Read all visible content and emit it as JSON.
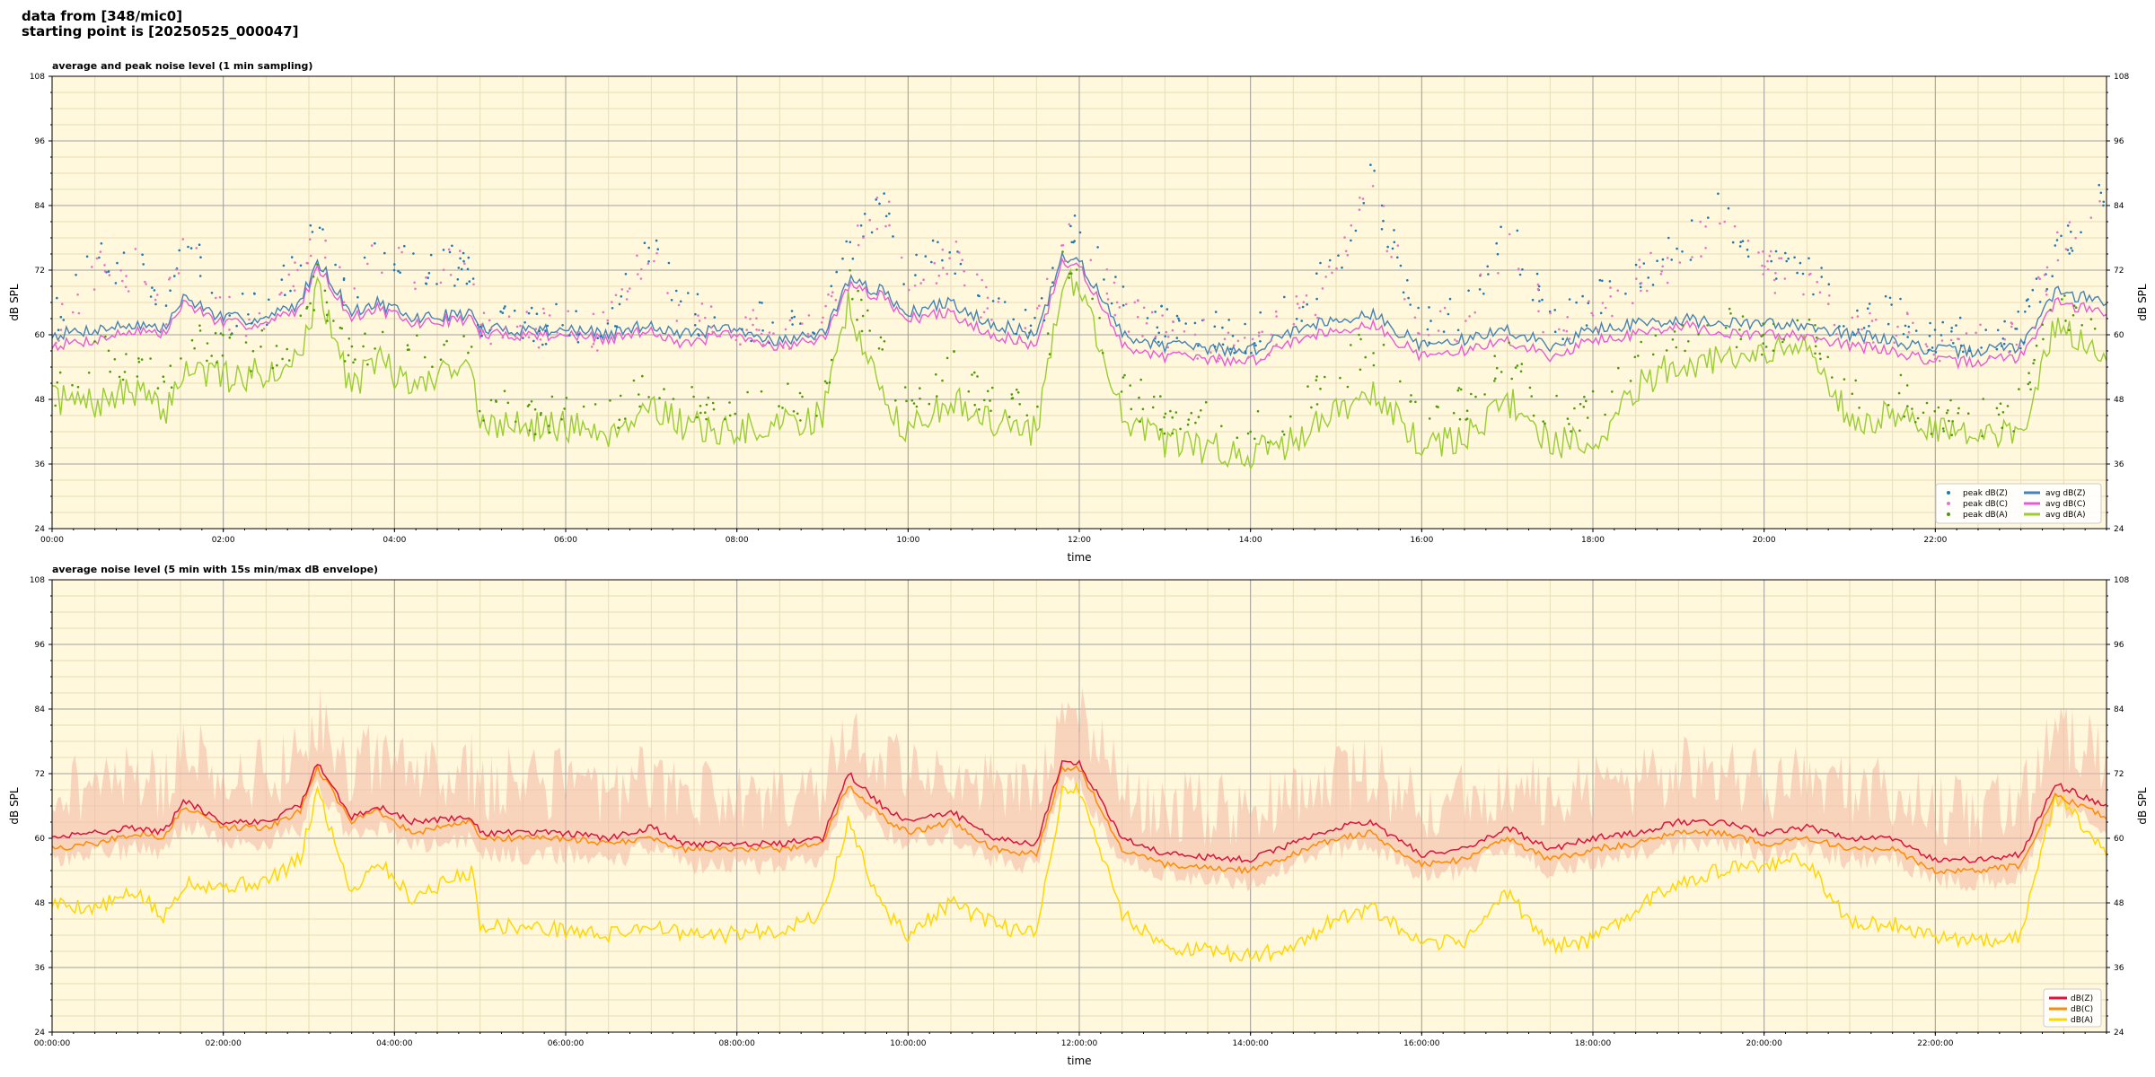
{
  "header": {
    "line1": "data from [348/mic0]",
    "line2": "starting point is [20250525_000047]"
  },
  "colors": {
    "background": "#fff8dc",
    "grid_major": "#a0a0a0",
    "grid_minor": "#e8ddb8",
    "peak_z": "#1f77b4",
    "peak_c": "#e377c2",
    "peak_a": "#4e9a06",
    "avg_z": "#4682b4",
    "avg_c": "#e85ad6",
    "avg_a": "#9acd32",
    "purple_overlap": "#9966cc",
    "dbz": "#dc143c",
    "dbc": "#ff8c00",
    "dba": "#ffd700",
    "envelope": "#f4b6a4"
  },
  "chart_data": [
    {
      "type": "line",
      "title": "average and peak noise level (1 min sampling)",
      "xlabel": "time",
      "ylabel": "dB SPL",
      "xlim": [
        0,
        24
      ],
      "ylim": [
        24,
        108
      ],
      "x_ticks": [
        0,
        2,
        4,
        6,
        8,
        10,
        12,
        14,
        16,
        18,
        20,
        22
      ],
      "x_tick_labels": [
        "00:00",
        "02:00",
        "04:00",
        "06:00",
        "08:00",
        "10:00",
        "12:00",
        "14:00",
        "16:00",
        "18:00",
        "20:00",
        "22:00"
      ],
      "y_ticks": [
        24,
        36,
        48,
        60,
        72,
        84,
        96,
        108
      ],
      "y_tick_labels": [
        "24",
        "36",
        "48",
        "60",
        "72",
        "84",
        "96",
        "108"
      ],
      "grid": true,
      "legend_position": "bottom-right",
      "legend": [
        "peak dB(Z)",
        "peak dB(C)",
        "peak dB(A)",
        "avg dB(Z)",
        "avg dB(C)",
        "avg dB(A)"
      ],
      "x": [
        0,
        0.5,
        1.0,
        1.3,
        1.55,
        2.0,
        2.5,
        2.9,
        3.1,
        3.5,
        3.8,
        4.2,
        4.9,
        5.0,
        6.0,
        6.5,
        7.0,
        7.4,
        7.8,
        8.5,
        9.0,
        9.3,
        9.7,
        10.0,
        10.5,
        11.0,
        11.5,
        11.8,
        12.0,
        12.5,
        13.0,
        14.0,
        14.5,
        15.0,
        15.4,
        16.0,
        16.5,
        17.0,
        17.5,
        18.0,
        18.5,
        19.0,
        19.5,
        20.0,
        20.5,
        21.0,
        21.5,
        22.0,
        22.5,
        23.0,
        23.4,
        24.0
      ],
      "series": [
        {
          "name": "avg dB(Z)",
          "kind": "line",
          "values": [
            60,
            61,
            62,
            61,
            67,
            63,
            63,
            66,
            74,
            64,
            66,
            63,
            64,
            61,
            61,
            60,
            62,
            60,
            61,
            59,
            60,
            70,
            68,
            64,
            66,
            62,
            60,
            74,
            74,
            60,
            58,
            57,
            61,
            63,
            64,
            58,
            59,
            61,
            58,
            61,
            62,
            63,
            62,
            62,
            62,
            60,
            59,
            57,
            57,
            58,
            68,
            66
          ]
        },
        {
          "name": "avg dB(C)",
          "kind": "line",
          "values": [
            58,
            59,
            61,
            60,
            66,
            62,
            62,
            65,
            73,
            63,
            65,
            62,
            63,
            60,
            60,
            59,
            61,
            58,
            60,
            58,
            59,
            69,
            67,
            63,
            64,
            60,
            58,
            73,
            73,
            58,
            56,
            55,
            59,
            61,
            62,
            56,
            57,
            59,
            56,
            59,
            60,
            62,
            60,
            60,
            60,
            58,
            57,
            55,
            55,
            56,
            66,
            64
          ]
        },
        {
          "name": "avg dB(A)",
          "kind": "line",
          "values": [
            48,
            47,
            50,
            45,
            54,
            52,
            53,
            56,
            68,
            50,
            56,
            50,
            56,
            43,
            43,
            42,
            47,
            43,
            42,
            43,
            45,
            66,
            48,
            42,
            48,
            44,
            42,
            70,
            70,
            45,
            40,
            38,
            40,
            46,
            50,
            39,
            41,
            48,
            40,
            40,
            50,
            55,
            55,
            56,
            58,
            44,
            45,
            42,
            42,
            42,
            62,
            56
          ]
        },
        {
          "name": "peak dB(Z)",
          "kind": "scatter",
          "values": [
            62,
            73,
            73,
            64,
            80,
            64,
            65,
            74,
            82,
            67,
            77,
            73,
            73,
            62,
            62,
            62,
            78,
            64,
            63,
            62,
            62,
            76,
            86,
            70,
            76,
            64,
            62,
            77,
            79,
            66,
            62,
            60,
            65,
            72,
            89,
            62,
            64,
            80,
            62,
            65,
            72,
            75,
            83,
            73,
            72,
            63,
            64,
            59,
            60,
            61,
            76,
            86
          ]
        },
        {
          "name": "peak dB(C)",
          "kind": "scatter",
          "values": [
            60,
            72,
            72,
            63,
            79,
            63,
            64,
            73,
            81,
            66,
            76,
            72,
            72,
            61,
            61,
            61,
            77,
            63,
            62,
            61,
            61,
            75,
            85,
            69,
            75,
            63,
            61,
            76,
            78,
            64,
            60,
            58,
            63,
            70,
            88,
            60,
            62,
            79,
            60,
            63,
            70,
            74,
            82,
            72,
            71,
            61,
            62,
            57,
            58,
            59,
            75,
            85
          ]
        },
        {
          "name": "peak dB(A)",
          "kind": "scatter",
          "values": [
            50,
            56,
            55,
            50,
            60,
            56,
            57,
            60,
            70,
            56,
            60,
            56,
            60,
            46,
            45,
            45,
            52,
            47,
            46,
            47,
            48,
            70,
            56,
            47,
            54,
            48,
            46,
            72,
            72,
            50,
            45,
            42,
            46,
            52,
            58,
            45,
            47,
            55,
            45,
            46,
            55,
            60,
            62,
            60,
            62,
            48,
            50,
            45,
            45,
            46,
            66,
            60
          ]
        }
      ]
    },
    {
      "type": "line",
      "title": "average noise level (5 min with 15s min/max dB envelope)",
      "xlabel": "time",
      "ylabel": "dB SPL",
      "xlim": [
        0,
        24
      ],
      "ylim": [
        24,
        108
      ],
      "x_ticks": [
        0,
        2,
        4,
        6,
        8,
        10,
        12,
        14,
        16,
        18,
        20,
        22
      ],
      "x_tick_labels": [
        "00:00:00",
        "02:00:00",
        "04:00:00",
        "06:00:00",
        "08:00:00",
        "10:00:00",
        "12:00:00",
        "14:00:00",
        "16:00:00",
        "18:00:00",
        "20:00:00",
        "22:00:00"
      ],
      "y_ticks": [
        24,
        36,
        48,
        60,
        72,
        84,
        96,
        108
      ],
      "y_tick_labels": [
        "24",
        "36",
        "48",
        "60",
        "72",
        "84",
        "96",
        "108"
      ],
      "grid": true,
      "legend_position": "bottom-right",
      "legend": [
        "dB(Z)",
        "dB(C)",
        "dB(A)"
      ],
      "x": [
        0,
        0.5,
        1.0,
        1.3,
        1.55,
        2.0,
        2.5,
        2.9,
        3.1,
        3.5,
        3.8,
        4.2,
        4.9,
        5.0,
        6.0,
        6.5,
        7.0,
        7.4,
        7.8,
        8.5,
        9.0,
        9.3,
        9.7,
        10.0,
        10.5,
        11.0,
        11.5,
        11.8,
        12.0,
        12.5,
        13.0,
        14.0,
        14.5,
        15.0,
        15.4,
        16.0,
        16.5,
        17.0,
        17.5,
        18.0,
        18.5,
        19.0,
        19.5,
        20.0,
        20.5,
        21.0,
        21.5,
        22.0,
        22.5,
        23.0,
        23.4,
        24.0
      ],
      "series": [
        {
          "name": "dB(Z)",
          "values": [
            60,
            61,
            62,
            61,
            67,
            63,
            63,
            66,
            74,
            64,
            66,
            63,
            64,
            61,
            61,
            60,
            62,
            59,
            59,
            59,
            60,
            72,
            66,
            63,
            65,
            60,
            59,
            74,
            74,
            60,
            57,
            56,
            59,
            62,
            63,
            57,
            58,
            62,
            58,
            60,
            61,
            63,
            63,
            61,
            62,
            60,
            60,
            56,
            56,
            57,
            70,
            66
          ]
        },
        {
          "name": "dB(C)",
          "values": [
            58,
            59,
            61,
            60,
            66,
            62,
            62,
            65,
            73,
            63,
            65,
            61,
            63,
            60,
            60,
            59,
            60,
            58,
            58,
            58,
            59,
            70,
            64,
            61,
            63,
            58,
            57,
            73,
            73,
            58,
            55,
            54,
            57,
            60,
            61,
            55,
            56,
            60,
            56,
            58,
            59,
            61,
            61,
            59,
            60,
            58,
            58,
            54,
            54,
            55,
            68,
            64
          ]
        },
        {
          "name": "dB(A)",
          "values": [
            48,
            47,
            50,
            45,
            52,
            51,
            52,
            56,
            69,
            50,
            56,
            49,
            54,
            44,
            43,
            42,
            44,
            42,
            42,
            43,
            46,
            63,
            47,
            42,
            48,
            44,
            42,
            69,
            69,
            46,
            40,
            38,
            40,
            45,
            47,
            40,
            41,
            50,
            40,
            41,
            47,
            52,
            54,
            55,
            56,
            44,
            44,
            42,
            41,
            42,
            68,
            58
          ]
        }
      ]
    }
  ]
}
